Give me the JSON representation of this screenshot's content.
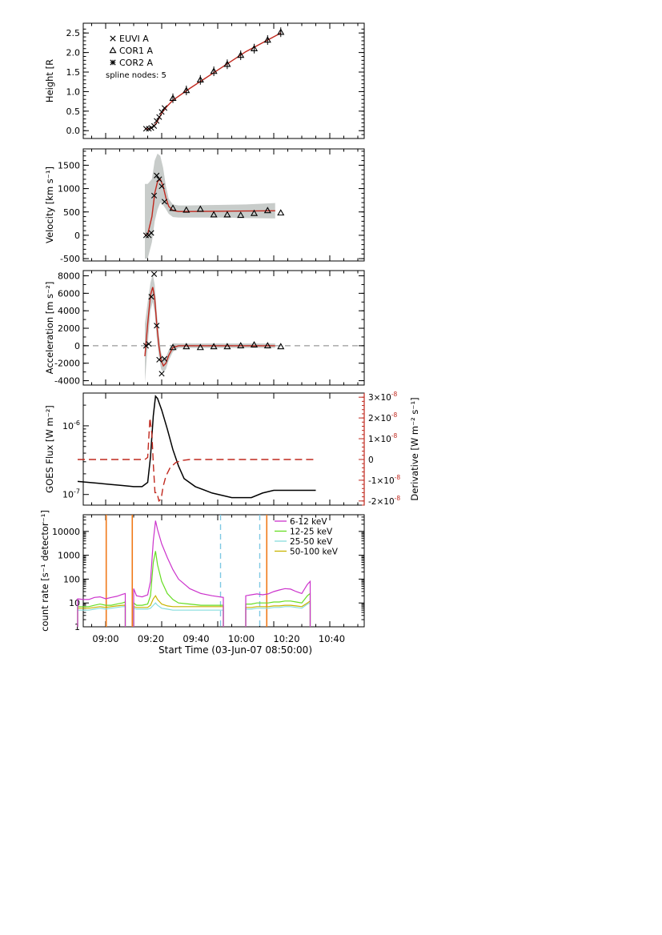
{
  "figure": {
    "xlabel": "Start Time (03-Jun-07 08:50:00)",
    "x_ticks": [
      "09:00",
      "09:20",
      "09:40",
      "10:00",
      "10:20",
      "10:40"
    ]
  },
  "colors": {
    "axis": "#000000",
    "fit": "#c0281e",
    "band": "#c8ccca",
    "zero_line": "#999999",
    "goes_flux": "#000000",
    "goes_derivative": "#c0281e",
    "orange_line": "#f07a1a",
    "blue_line": "#7ec8e3",
    "rhessi_6_12": "#cc33cc",
    "rhessi_12_25": "#66dd22",
    "rhessi_25_50": "#88dddd",
    "rhessi_50_100": "#c8b400"
  },
  "chart_data": [
    {
      "type": "scatter",
      "panel": "height",
      "ylabel": "Height [R_Sun]",
      "ylim": [
        -0.2,
        2.75
      ],
      "y_ticks": [
        0.0,
        0.5,
        1.0,
        1.5,
        2.0,
        2.5
      ],
      "legend": [
        "EUVI A",
        "COR1 A",
        "COR2 A"
      ],
      "annotation": "spline nodes: 5",
      "series": [
        {
          "name": "EUVI A",
          "x": [
            24.4,
            25.4,
            26.3,
            27.3,
            28.2,
            29.1,
            30.0,
            31.0
          ],
          "y": [
            0.05,
            0.05,
            0.07,
            0.12,
            0.25,
            0.35,
            0.48,
            0.58
          ]
        },
        {
          "name": "COR1 A",
          "x": [
            34.0,
            38.8,
            43.8,
            48.6,
            53.4,
            58.2,
            63.0,
            67.8,
            72.5
          ],
          "y": [
            0.83,
            1.03,
            1.3,
            1.52,
            1.7,
            1.93,
            2.1,
            2.32,
            2.52
          ]
        },
        {
          "name": "COR2 A",
          "x": [],
          "y": []
        }
      ],
      "fit": {
        "x": [
          24.0,
          26.0,
          28.0,
          30.0,
          32.0,
          34.0,
          40.0,
          50.0,
          60.0,
          72.5
        ],
        "y": [
          0.04,
          0.05,
          0.18,
          0.45,
          0.63,
          0.78,
          1.08,
          1.55,
          2.02,
          2.5
        ]
      }
    },
    {
      "type": "scatter",
      "panel": "velocity",
      "ylabel": "Velocity [km s^-1]",
      "ylim": [
        -550,
        1850
      ],
      "y_ticks": [
        -500,
        0,
        500,
        1000,
        1500
      ],
      "series": [
        {
          "name": "EUVI A",
          "x": [
            24.4,
            25.4,
            26.3,
            27.3,
            28.2,
            29.1,
            30.0,
            31.0
          ],
          "y": [
            0,
            0,
            50,
            850,
            1280,
            1200,
            1050,
            720
          ]
        },
        {
          "name": "COR1 A",
          "x": [
            34.0,
            38.8,
            43.8,
            48.6,
            53.4,
            58.2,
            63.0,
            67.8,
            72.5
          ],
          "y": [
            580,
            540,
            560,
            440,
            440,
            430,
            470,
            530,
            480
          ]
        }
      ],
      "fit": {
        "x": [
          24.0,
          25.0,
          26.5,
          27.5,
          28.5,
          29.5,
          30.5,
          31.5,
          32.5,
          34.0,
          36.0,
          40.0,
          50.0,
          60.0,
          70.5
        ],
        "y": [
          0,
          20,
          400,
          900,
          1150,
          1200,
          1050,
          800,
          620,
          530,
          510,
          510,
          515,
          520,
          525
        ]
      },
      "band": {
        "x": [
          24.0,
          25.0,
          26.5,
          27.5,
          28.5,
          29.5,
          30.5,
          31.5,
          32.5,
          34.0,
          36.0,
          40.0,
          50.0,
          60.0,
          70.5
        ],
        "upper": [
          1100,
          1100,
          1200,
          1600,
          1750,
          1700,
          1450,
          1050,
          780,
          660,
          640,
          640,
          650,
          660,
          690
        ],
        "lower": [
          -500,
          -500,
          -150,
          300,
          550,
          700,
          650,
          560,
          460,
          390,
          380,
          380,
          380,
          370,
          360
        ]
      }
    },
    {
      "type": "scatter",
      "panel": "acceleration",
      "ylabel": "Acceleration [m s^-2]",
      "ylim": [
        -4500,
        8600
      ],
      "y_ticks": [
        -4000,
        -2000,
        0,
        2000,
        4000,
        6000,
        8000
      ],
      "series": [
        {
          "name": "EUVI A",
          "x": [
            24.4,
            25.4,
            26.3,
            27.3,
            28.2,
            29.1,
            30.0,
            31.0
          ],
          "y": [
            0,
            200,
            5600,
            8200,
            2300,
            -1600,
            -3200,
            -1500
          ]
        },
        {
          "name": "COR1 A",
          "x": [
            34.0,
            38.8,
            43.8,
            48.6,
            53.4,
            58.2,
            63.0,
            67.8,
            72.5
          ],
          "y": [
            -200,
            -100,
            -200,
            -100,
            -100,
            0,
            100,
            0,
            -100
          ]
        }
      ],
      "fit": {
        "x": [
          24.0,
          25.0,
          26.0,
          26.8,
          27.5,
          28.2,
          29.0,
          29.8,
          30.6,
          31.5,
          32.5,
          34.0,
          36.0,
          40.0,
          50.0,
          60.0,
          70.5
        ],
        "y": [
          -1200,
          2500,
          5800,
          6700,
          5400,
          2600,
          0,
          -1700,
          -2300,
          -2000,
          -1100,
          -200,
          0,
          0,
          0,
          0,
          0
        ]
      },
      "band": {
        "x": [
          24.0,
          25.0,
          26.0,
          26.8,
          27.5,
          28.2,
          29.0,
          29.8,
          30.6,
          31.5,
          32.5,
          34.0,
          36.0,
          40.0,
          50.0,
          60.0,
          70.5
        ],
        "upper": [
          2500,
          5000,
          7200,
          8200,
          7000,
          4000,
          1200,
          -800,
          -1500,
          -1300,
          -500,
          300,
          250,
          250,
          250,
          250,
          250
        ],
        "lower": [
          -4200,
          0,
          4000,
          5000,
          3800,
          1000,
          -1200,
          -2700,
          -3000,
          -2700,
          -1700,
          -700,
          -250,
          -250,
          -250,
          -250,
          -250
        ]
      }
    },
    {
      "type": "line",
      "panel": "goes",
      "ylabel": "GOES Flux [W m^-2]",
      "y_tick_labels": [
        "10^-6",
        "10^-7"
      ],
      "y_scale": "log",
      "ylim": [
        7e-08,
        3e-06
      ],
      "series": [
        {
          "name": "",
          "x": [
            0,
            4,
            8,
            12,
            16,
            20,
            23,
            25,
            26,
            27,
            27.8,
            28.5,
            30,
            32,
            34,
            36,
            38,
            42,
            48,
            55,
            62,
            66,
            70,
            75,
            80,
            85
          ],
          "y": [
            1.55e-07,
            1.5e-07,
            1.45e-07,
            1.4e-07,
            1.35e-07,
            1.3e-07,
            1.3e-07,
            1.5e-07,
            3.5e-07,
            1.4e-06,
            2.7e-06,
            2.5e-06,
            1.7e-06,
            9e-07,
            4.5e-07,
            2.6e-07,
            1.7e-07,
            1.3e-07,
            1.05e-07,
            9e-08,
            9e-08,
            1.05e-07,
            1.15e-07,
            1.15e-07,
            1.15e-07,
            1.15e-07
          ]
        }
      ],
      "secondary_axis": {
        "ylabel": "Derivative [W m^-2 s^-1]",
        "ylim": [
          -2.2e-08,
          3.2e-08
        ],
        "y_tick_labels": [
          "3x10^-8",
          "2x10^-8",
          "1x10^-8",
          "0",
          "-1x10^-8",
          "-2x10^-8"
        ],
        "series": {
          "name": "",
          "x": [
            0,
            24,
            25,
            25.8,
            26.5,
            27.0,
            27.6,
            28.3,
            29.0,
            29.8,
            30.5,
            31.5,
            33,
            35,
            37,
            40,
            85
          ],
          "y": [
            0,
            0,
            1e-09,
            2e-08,
            1.2e-08,
            -2e-09,
            -1.6e-08,
            -1.6e-08,
            -2e-08,
            -1.9e-08,
            -1.3e-08,
            -8e-09,
            -4e-09,
            -1.5e-09,
            -5e-10,
            0,
            0
          ]
        }
      }
    },
    {
      "type": "line",
      "panel": "rhessi",
      "ylabel": "count rate [s^-1 detector^-1]",
      "y_scale": "log",
      "y_tick_labels": [
        "1",
        "10",
        "100",
        "1000",
        "10000"
      ],
      "ylim": [
        1,
        50000
      ],
      "legend": [
        "6-12  keV",
        "12-25  keV",
        "25-50  keV",
        "50-100  keV"
      ],
      "vertical_lines": {
        "orange": [
          10.2,
          19.5,
          67.5
        ],
        "blue_dashed": [
          51.0,
          65.0
        ]
      },
      "series": [
        {
          "name": "6-12  keV",
          "segments": [
            {
              "x": [
                0,
                2,
                4,
                6,
                8,
                10,
                12,
                14,
                16,
                17
              ],
              "y": [
                15,
                14,
                14,
                17,
                18,
                15,
                17,
                19,
                23,
                25
              ]
            },
            {
              "x": [
                20,
                21,
                23,
                25,
                26,
                27,
                27.8,
                28.5,
                30,
                32,
                34,
                36,
                40,
                44,
                48,
                52
              ],
              "y": [
                40,
                20,
                18,
                22,
                80,
                4000,
                28000,
                12000,
                3000,
                800,
                250,
                100,
                40,
                25,
                20,
                17
              ]
            },
            {
              "x": [
                60,
                62,
                64,
                66,
                68,
                70,
                72,
                74,
                76,
                78,
                80,
                82,
                83
              ],
              "y": [
                20,
                22,
                24,
                22,
                24,
                30,
                35,
                40,
                38,
                30,
                25,
                60,
                80
              ]
            }
          ]
        },
        {
          "name": "12-25  keV",
          "segments": [
            {
              "x": [
                0,
                2,
                4,
                6,
                8,
                10,
                12,
                14,
                16,
                17
              ],
              "y": [
                7,
                7,
                7,
                8,
                9,
                8,
                8,
                9,
                10,
                11
              ]
            },
            {
              "x": [
                20,
                21,
                23,
                25,
                26,
                27,
                27.8,
                28.5,
                30,
                32,
                34,
                36,
                40,
                44,
                48,
                52
              ],
              "y": [
                10,
                8,
                8,
                9,
                20,
                500,
                1500,
                400,
                80,
                25,
                14,
                10,
                9,
                8,
                8,
                8
              ]
            },
            {
              "x": [
                60,
                62,
                64,
                66,
                68,
                70,
                72,
                74,
                76,
                78,
                80,
                82,
                83
              ],
              "y": [
                9,
                9,
                10,
                10,
                10,
                11,
                11,
                12,
                12,
                11,
                10,
                20,
                25
              ]
            }
          ]
        },
        {
          "name": "25-50  keV",
          "segments": [
            {
              "x": [
                0,
                2,
                4,
                6,
                8,
                10,
                12,
                14,
                16,
                17
              ],
              "y": [
                5,
                5,
                5,
                5.5,
                6,
                5.5,
                6,
                6.5,
                7,
                7
              ]
            },
            {
              "x": [
                20,
                21,
                23,
                25,
                26,
                27,
                27.8,
                28.5,
                30,
                32,
                34,
                36,
                40,
                44,
                48,
                52
              ],
              "y": [
                6,
                5.5,
                5.5,
                5.5,
                6,
                8,
                10,
                8,
                6,
                5.5,
                5,
                5,
                5,
                5,
                5,
                5
              ]
            },
            {
              "x": [
                60,
                62,
                64,
                66,
                68,
                70,
                72,
                74,
                76,
                78,
                80,
                82,
                83
              ],
              "y": [
                5.5,
                5.5,
                6,
                6,
                6,
                6.5,
                6.5,
                7,
                7,
                6.5,
                6,
                9,
                10
              ]
            }
          ]
        },
        {
          "name": "50-100  keV",
          "segments": [
            {
              "x": [
                0,
                2,
                4,
                6,
                8,
                10,
                12,
                14,
                16,
                17
              ],
              "y": [
                6,
                6,
                6,
                6.5,
                7,
                6.5,
                7,
                7.5,
                8,
                8
              ]
            },
            {
              "x": [
                20,
                21,
                23,
                25,
                26,
                27,
                27.8,
                28.5,
                30,
                32,
                34,
                36,
                40,
                44,
                48,
                52
              ],
              "y": [
                7,
                6.5,
                6.5,
                6.5,
                8,
                15,
                20,
                14,
                9,
                7.5,
                7,
                7,
                7,
                7,
                7,
                7
              ]
            },
            {
              "x": [
                60,
                62,
                64,
                66,
                68,
                70,
                72,
                74,
                76,
                78,
                80,
                82,
                83
              ],
              "y": [
                6.5,
                6.5,
                7,
                7,
                7,
                7.5,
                7.5,
                8,
                8,
                7.5,
                7,
                10,
                12
              ]
            }
          ]
        }
      ]
    }
  ]
}
